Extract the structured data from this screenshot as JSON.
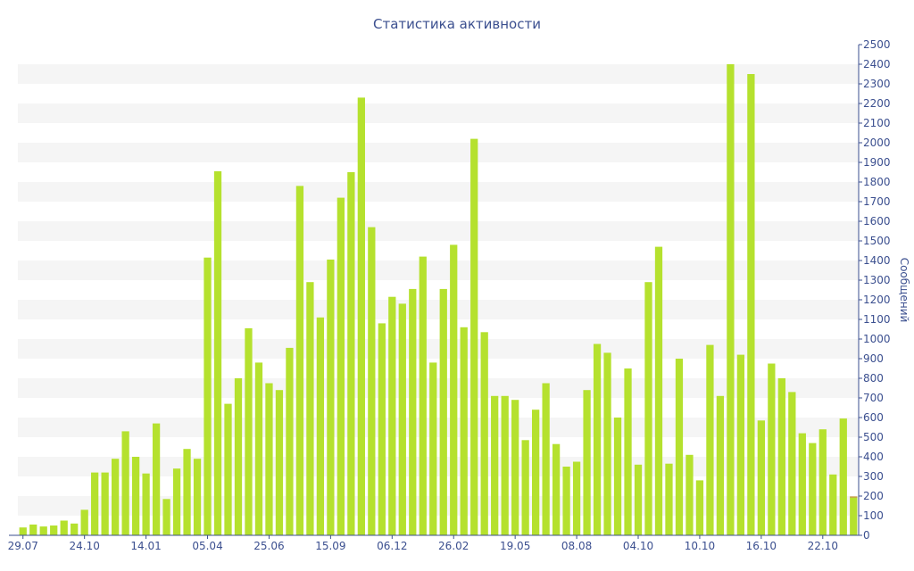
{
  "chart_data": {
    "type": "bar",
    "title": "Статистика активности",
    "xlabel": "",
    "ylabel": "Сообщений",
    "ylim": [
      0,
      2500
    ],
    "y_ticks": [
      0,
      100,
      200,
      300,
      400,
      500,
      600,
      700,
      800,
      900,
      1000,
      1100,
      1200,
      1300,
      1400,
      1500,
      1600,
      1700,
      1800,
      1900,
      2000,
      2100,
      2200,
      2300,
      2400,
      2500
    ],
    "x_tick_labels": [
      {
        "index": 0,
        "label": "29.07"
      },
      {
        "index": 6,
        "label": "24.10"
      },
      {
        "index": 12,
        "label": "14.01"
      },
      {
        "index": 18,
        "label": "05.04"
      },
      {
        "index": 24,
        "label": "25.06"
      },
      {
        "index": 30,
        "label": "15.09"
      },
      {
        "index": 36,
        "label": "06.12"
      },
      {
        "index": 42,
        "label": "26.02"
      },
      {
        "index": 48,
        "label": "19.05"
      },
      {
        "index": 54,
        "label": "08.08"
      },
      {
        "index": 60,
        "label": "04.10"
      },
      {
        "index": 66,
        "label": "10.10"
      },
      {
        "index": 72,
        "label": "16.10"
      },
      {
        "index": 78,
        "label": "22.10"
      }
    ],
    "grid": "horizontal-bands",
    "bar_color": "#b5e12e",
    "last_bar_color": "#c8a04a",
    "values": [
      40,
      55,
      45,
      50,
      75,
      60,
      130,
      320,
      320,
      390,
      530,
      400,
      315,
      570,
      185,
      340,
      440,
      390,
      1415,
      1855,
      670,
      800,
      1055,
      880,
      775,
      740,
      955,
      1780,
      1290,
      1110,
      1405,
      1720,
      1850,
      2230,
      1570,
      1080,
      1215,
      1180,
      1255,
      1420,
      880,
      1255,
      1480,
      1060,
      2020,
      1035,
      710,
      710,
      690,
      485,
      640,
      775,
      465,
      350,
      375,
      740,
      975,
      930,
      600,
      850,
      360,
      1290,
      1470,
      365,
      900,
      410,
      280,
      970,
      710,
      2400,
      920,
      2350,
      585,
      875,
      800,
      730,
      520,
      470,
      540,
      310,
      595,
      195
    ]
  }
}
